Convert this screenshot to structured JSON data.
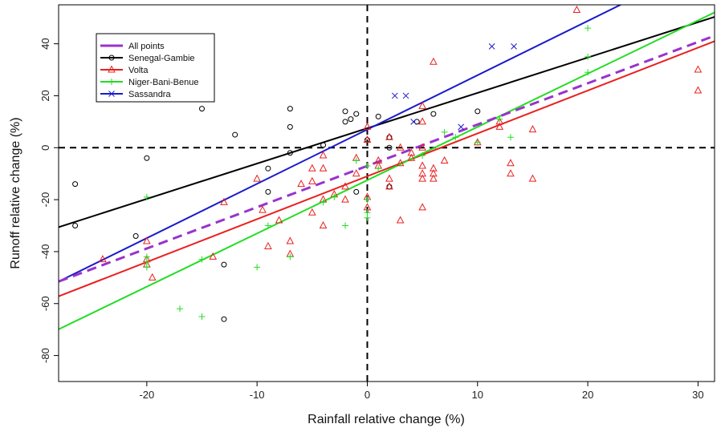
{
  "chart_data": {
    "type": "scatter",
    "title": "",
    "xlabel": "Rainfall relative change (%)",
    "ylabel": "Runoff relative change (%)",
    "xlim": [
      -28,
      31.5
    ],
    "ylim": [
      -90,
      55
    ],
    "xticks": [
      -20,
      -10,
      0,
      10,
      20,
      30
    ],
    "yticks": [
      -80,
      -60,
      -40,
      -20,
      0,
      20,
      40
    ],
    "grid": false,
    "legend_position": "top-left",
    "reference_lines": [
      {
        "orientation": "vertical",
        "value": 0,
        "style": "dashed",
        "color": "#000000"
      },
      {
        "orientation": "horizontal",
        "value": 0,
        "style": "dashed",
        "color": "#000000"
      }
    ],
    "fit_lines": [
      {
        "name": "All points",
        "color": "#9933cc",
        "style": "dashed",
        "x_range": [
          -28,
          31.5
        ],
        "slope": 1.59,
        "intercept": -7
      },
      {
        "name": "Senegal-Gambie",
        "color": "#000000",
        "style": "solid",
        "x_range": [
          -28,
          31.5
        ],
        "slope": 1.36,
        "intercept": 7.5
      },
      {
        "name": "Volta",
        "color": "#e8201e",
        "style": "solid",
        "x_range": [
          -28,
          31.5
        ],
        "slope": 1.65,
        "intercept": -11
      },
      {
        "name": "Niger-Bani-Benue",
        "color": "#22dd22",
        "style": "solid",
        "x_range": [
          -28,
          31.5
        ],
        "slope": 2.05,
        "intercept": -12.5
      },
      {
        "name": "Sassandra",
        "color": "#1a1acc",
        "style": "solid",
        "x_range": [
          -28,
          23.5
        ],
        "slope": 2.09,
        "intercept": 7
      }
    ],
    "series": [
      {
        "name": "Senegal-Gambie",
        "marker": "circle",
        "color": "#000000",
        "x": [
          -26.5,
          -26.5,
          -21,
          -20,
          -15,
          -13,
          -13,
          -12,
          -9,
          -9,
          -7,
          -7,
          -7,
          -4,
          -2,
          -2,
          -1.5,
          -1,
          -1,
          0,
          1,
          2,
          2,
          2,
          4.5,
          6,
          10
        ],
        "y": [
          -14,
          -30,
          -34,
          -4,
          15,
          -45,
          -66,
          5,
          -8,
          -17,
          15,
          8,
          -2,
          1,
          14,
          10,
          11,
          13,
          -17,
          3,
          12,
          4,
          0,
          -15,
          10,
          13,
          14
        ]
      },
      {
        "name": "Volta",
        "marker": "triangle",
        "color": "#e8201e",
        "x": [
          -24,
          -20,
          -20,
          -20,
          -19.5,
          -14,
          -13,
          -10,
          -9.5,
          -9,
          -8,
          -7,
          -7,
          -6,
          -5,
          -5,
          -5,
          -4,
          -4,
          -4,
          -4,
          -3,
          -2,
          -2,
          -1,
          -1,
          0,
          0,
          0,
          0,
          1,
          1,
          2,
          2,
          2,
          3,
          3,
          3,
          4,
          4,
          5,
          5,
          5,
          5,
          5,
          5,
          5,
          6,
          6,
          6,
          6,
          7,
          10,
          12,
          12,
          13,
          13,
          15,
          15,
          19,
          30,
          30
        ],
        "y": [
          -43,
          -43,
          -36,
          -45,
          -50,
          -42,
          -21,
          -12,
          -24,
          -38,
          -28,
          -36,
          -41,
          -14,
          -8,
          -13,
          -25,
          -3,
          -8,
          -20,
          -30,
          -18,
          -15,
          -20,
          -4,
          -10,
          8,
          3,
          -19,
          -23,
          -5,
          -7,
          -12,
          -15,
          4,
          0,
          -6,
          -28,
          -2,
          -4,
          0,
          -7,
          -10,
          -12,
          -23,
          16,
          10,
          -8,
          -10,
          -12,
          33,
          -5,
          2,
          8,
          10,
          -6,
          -10,
          -12,
          7,
          53,
          30,
          22
        ]
      },
      {
        "name": "Niger-Bani-Benue",
        "marker": "plus",
        "color": "#22dd22",
        "x": [
          -20,
          -20,
          -20,
          -20,
          -17,
          -15,
          -15,
          -10,
          -9,
          -7,
          -4,
          -3,
          -2,
          -1,
          0,
          0,
          0,
          0,
          1,
          5,
          7,
          8,
          10,
          12,
          13,
          20,
          20,
          20
        ],
        "y": [
          -19,
          -42,
          -46,
          -44,
          -62,
          -65,
          -43,
          -46,
          -30,
          -42,
          -21,
          -19,
          -30,
          -5,
          -20,
          -25,
          -27,
          -7,
          -8,
          -3,
          6,
          4,
          2,
          11,
          4,
          46,
          35,
          29
        ]
      },
      {
        "name": "Sassandra",
        "marker": "x",
        "color": "#1a1acc",
        "x": [
          2.5,
          3.5,
          4.2,
          8.5,
          11.3,
          13.3
        ],
        "y": [
          20,
          20,
          10,
          8,
          39,
          39
        ]
      }
    ]
  }
}
